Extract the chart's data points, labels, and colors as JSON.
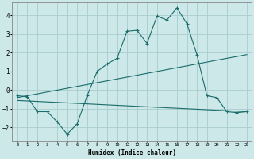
{
  "xlabel": "Humidex (Indice chaleur)",
  "bg_color": "#cce8e8",
  "grid_color": "#aacccc",
  "line_color": "#1a6b6b",
  "xlim": [
    -0.5,
    23.5
  ],
  "ylim": [
    -2.7,
    4.7
  ],
  "xticks": [
    0,
    1,
    2,
    3,
    4,
    5,
    6,
    7,
    8,
    9,
    10,
    11,
    12,
    13,
    14,
    15,
    16,
    17,
    18,
    19,
    20,
    21,
    22,
    23
  ],
  "yticks": [
    -2,
    -1,
    0,
    1,
    2,
    3,
    4
  ],
  "line1_x": [
    0,
    1,
    2,
    3,
    4,
    5,
    6,
    7,
    8,
    9,
    10,
    11,
    12,
    13,
    14,
    15,
    16,
    17,
    18,
    19,
    20,
    21,
    22,
    23
  ],
  "line1_y": [
    -0.3,
    -0.35,
    -1.15,
    -1.15,
    -1.7,
    -2.35,
    -1.8,
    -0.3,
    1.0,
    1.4,
    1.7,
    3.15,
    3.2,
    2.5,
    3.95,
    3.75,
    4.4,
    3.55,
    1.9,
    -0.3,
    -0.4,
    -1.15,
    -1.2,
    -1.15
  ],
  "line2_x": [
    0,
    23
  ],
  "line2_y": [
    -0.4,
    1.9
  ],
  "line3_x": [
    0,
    23
  ],
  "line3_y": [
    -0.55,
    -1.15
  ],
  "marker": "+"
}
